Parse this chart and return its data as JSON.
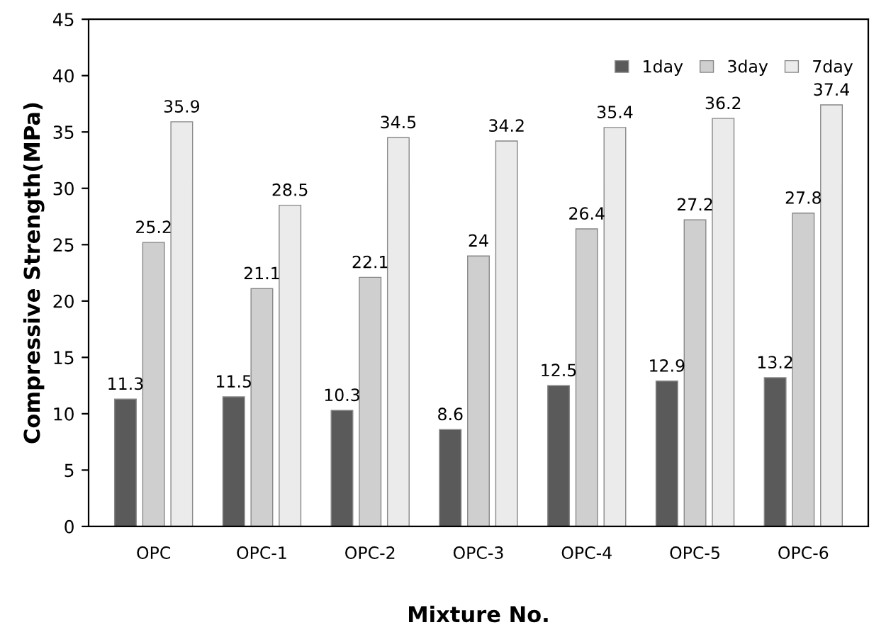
{
  "chart_data": {
    "type": "bar",
    "xlabel": "Mixture No.",
    "ylabel": "Compressive Strength(MPa)",
    "categories": [
      "OPC",
      "OPC-1",
      "OPC-2",
      "OPC-3",
      "OPC-4",
      "OPC-5",
      "OPC-6"
    ],
    "series": [
      {
        "name": "1day",
        "color": "#5a5a5a",
        "values": [
          11.3,
          11.5,
          10.3,
          8.6,
          12.5,
          12.9,
          13.2
        ]
      },
      {
        "name": "3day",
        "color": "#cfcfcf",
        "values": [
          25.2,
          21.1,
          22.1,
          24,
          26.4,
          27.2,
          27.8
        ]
      },
      {
        "name": "7day",
        "color": "#ebebeb",
        "values": [
          35.9,
          28.5,
          34.5,
          34.2,
          35.4,
          36.2,
          37.4
        ]
      }
    ],
    "ylim": [
      0,
      45
    ],
    "yticks": [
      0,
      5,
      10,
      15,
      20,
      25,
      30,
      35,
      40,
      45
    ],
    "data_labels": true,
    "legend": "top right",
    "grid": false
  }
}
